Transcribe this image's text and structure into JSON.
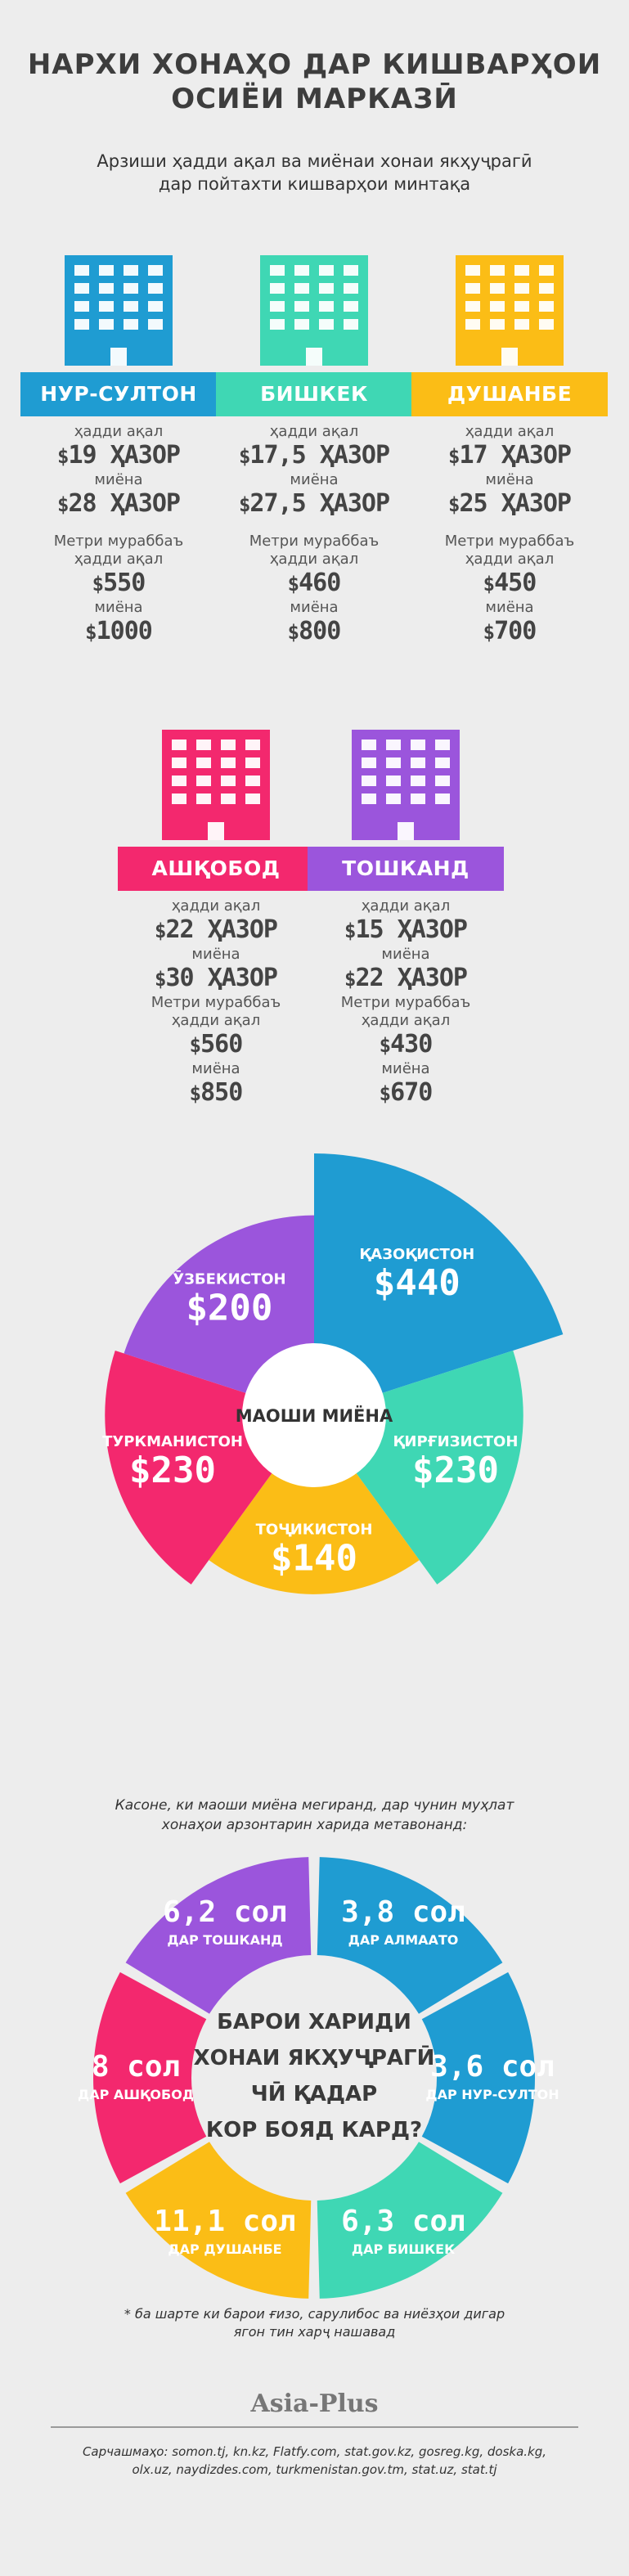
{
  "header": {
    "title_line1": "НАРХИ ХОНАҲО ДАР КИШВАРҲОИ",
    "title_line2": "ОСИЁИ МАРКАЗӢ",
    "subtitle_line1": "Арзиши ҳадди ақал ва миёнаи хонаи якҳуҷрагӣ",
    "subtitle_line2": "дар пойтахти кишварҳои минтақа"
  },
  "labels": {
    "min": "ҳадди ақал",
    "avg": "миёна",
    "sqm": "Метри мураббаъ",
    "thousand": "ҲАЗОР",
    "currency": "$"
  },
  "colors": {
    "blue": "#1f9cd2",
    "teal": "#3fd7b4",
    "yellow": "#fbbd16",
    "pink": "#f3286e",
    "purple": "#9b55dc",
    "background": "#ededed"
  },
  "cities": [
    {
      "name": "НУР-СУЛТОН",
      "color": "#1f9cd2",
      "min_price": "19",
      "avg_price": "28",
      "sqm_min": "550",
      "sqm_avg": "1000"
    },
    {
      "name": "БИШКЕК",
      "color": "#3fd7b4",
      "min_price": "17,5",
      "avg_price": "27,5",
      "sqm_min": "460",
      "sqm_avg": "800"
    },
    {
      "name": "ДУШАНБЕ",
      "color": "#fbbd16",
      "min_price": "17",
      "avg_price": "25",
      "sqm_min": "450",
      "sqm_avg": "700"
    },
    {
      "name": "АШҚОБОД",
      "color": "#f3286e",
      "min_price": "22",
      "avg_price": "30",
      "sqm_min": "560",
      "sqm_avg": "850"
    },
    {
      "name": "ТОШКАНД",
      "color": "#9b55dc",
      "min_price": "15",
      "avg_price": "22",
      "sqm_min": "430",
      "sqm_avg": "670"
    }
  ],
  "chart_data": [
    {
      "type": "pie",
      "title": "МАОШИ МИЁНА",
      "unit": "$",
      "series": [
        {
          "name": "ҚАЗОҚИСТОН",
          "value": 440,
          "color": "#1f9cd2"
        },
        {
          "name": "ҚИРҒИЗИСТОН",
          "value": 230,
          "color": "#3fd7b4"
        },
        {
          "name": "ТОҶИКИСТОН",
          "value": 140,
          "color": "#fbbd16"
        },
        {
          "name": "ТУРКМАНИСТОН",
          "value": 230,
          "color": "#f3286e"
        },
        {
          "name": "ӮЗБЕКИСТОН",
          "value": 200,
          "color": "#9b55dc"
        }
      ]
    },
    {
      "type": "pie",
      "title": "БАРОИ ХАРИДИ ХОНАИ ЯКҲУҶРАГӢ ЧӢ ҚАДАР КОР БОЯД КАРД?",
      "unit": "сол",
      "series": [
        {
          "name": "ДАР АЛМААТО",
          "value": 3.8,
          "label": "3,8",
          "color": "#1f9cd2"
        },
        {
          "name": "ДАР НУР-СУЛТОН",
          "value": 3.6,
          "label": "3,6",
          "color": "#1f9cd2"
        },
        {
          "name": "ДАР БИШКЕК",
          "value": 6.3,
          "label": "6,3",
          "color": "#3fd7b4"
        },
        {
          "name": "ДАР ДУШАНБЕ",
          "value": 11.1,
          "label": "11,1",
          "color": "#fbbd16"
        },
        {
          "name": "ДАР АШҚОБОД",
          "value": 8,
          "label": "8",
          "color": "#f3286e"
        },
        {
          "name": "ДАР ТОШКАНД",
          "value": 6.2,
          "label": "6,2",
          "color": "#9b55dc"
        }
      ]
    }
  ],
  "years_intro_line1": "Касоне, ки маоши миёна мегиранд, дар чунин муҳлат",
  "years_intro_line2": "хонаҳои арзонтарин харида метавонанд:",
  "years_center": [
    "БАРОИ ХАРИДИ",
    "ХОНАИ ЯКҲУҶРАГӢ",
    "ЧӢ ҚАДАР",
    "КОР БОЯД КАРД?"
  ],
  "years_unit": "сол",
  "footnote_line1": "* ба шарте ки барои ғизо, сарулибос ва ниёзҳои дигар",
  "footnote_line2": "ягон тин харҷ нашавад",
  "brand": "Asia-Plus",
  "sources_line1": "Сарчашмаҳо: somon.tj, kn.kz, Flatfy.com, stat.gov.kz, gosreg.kg, doska.kg,",
  "sources_line2": "olx.uz, naydizdes.com, turkmenistan.gov.tm, stat.uz, stat.tj"
}
